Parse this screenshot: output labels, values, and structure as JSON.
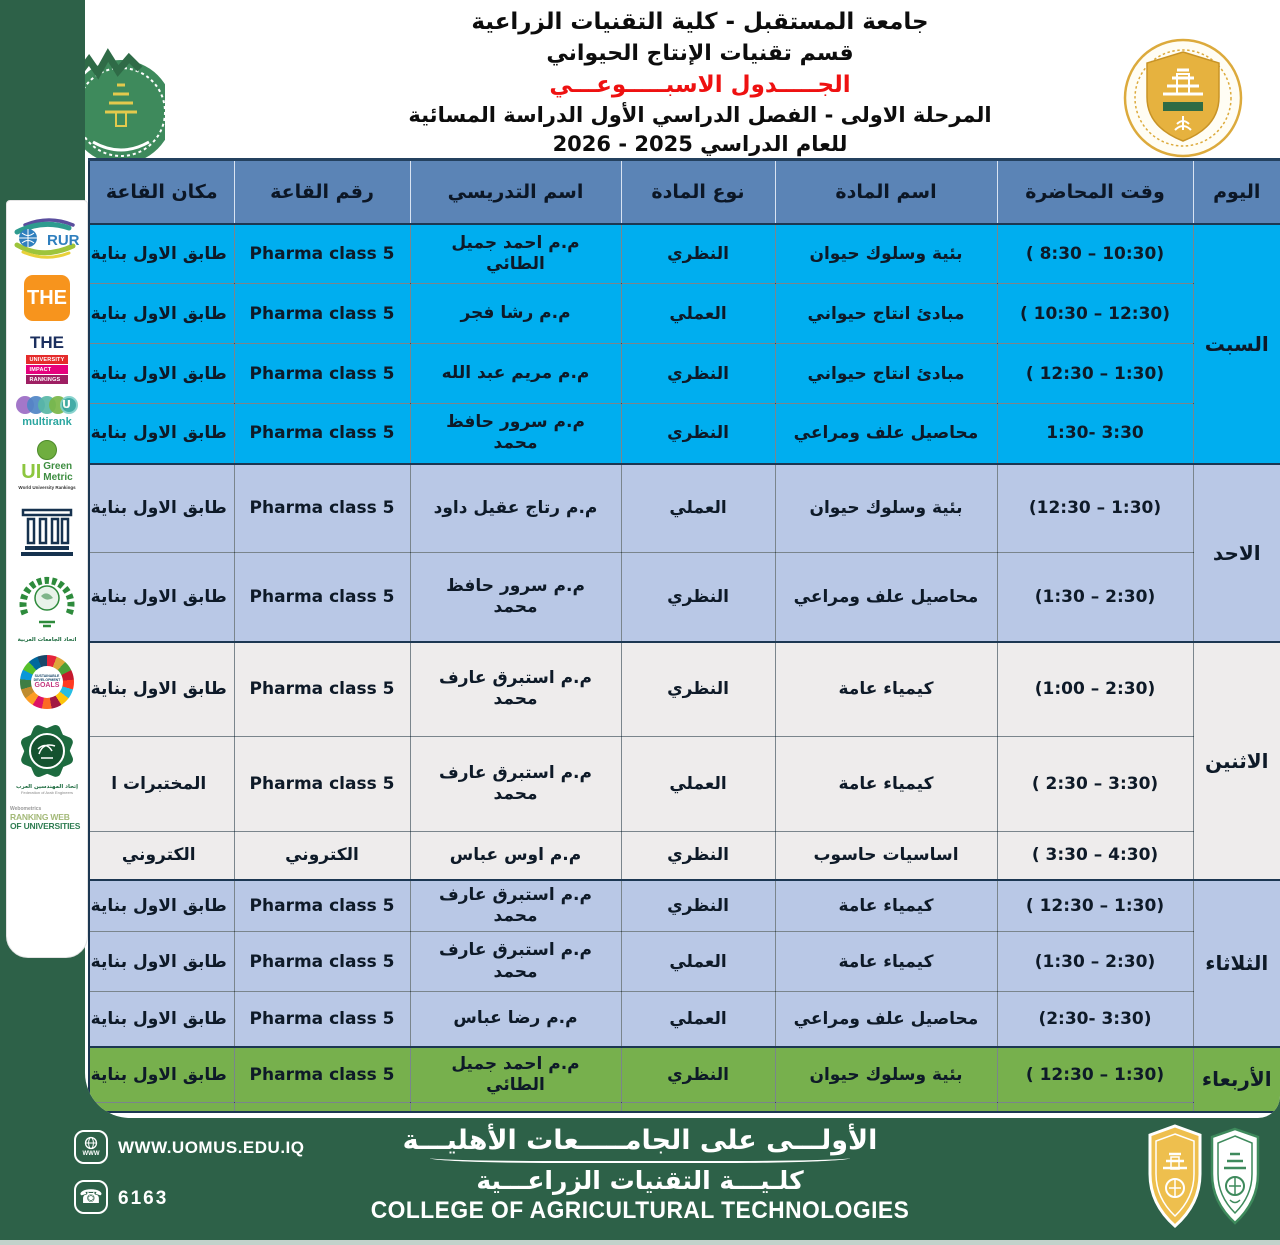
{
  "header": {
    "line1": "جامعة المستقبل - كلية التقنيات الزراعية",
    "line2": "قسم تقنيات الإنتاج الحيواني",
    "line3": "الجـــــدول الاسبـــــوعـــي",
    "line4": "المرحلة الاولى - الفصل الدراسي الأول الدراسة المسائية",
    "line5": "للعام الدراسي 2025 - 2026"
  },
  "table": {
    "headers": [
      "اليوم",
      "وقت المحاضرة",
      "اسم المادة",
      "نوع المادة",
      "اسم التدريسي",
      "رقم القاعة",
      "مكان القاعة"
    ],
    "days": [
      {
        "name": "السبت",
        "rows": [
          {
            "time": "( 8:30 – 10:30)",
            "subject": "بئية وسلوك حيوان",
            "type": "النظري",
            "instructor": "م.م احمد جميل الطائي",
            "room": "Pharma class 5",
            "location": "طابق الاول بناية"
          },
          {
            "time": "( 10:30 – 12:30)",
            "subject": "مبادئ انتاج حيواني",
            "type": "العملي",
            "instructor": "م.م رشا فجر",
            "room": "Pharma class 5",
            "location": "طابق الاول بناية"
          },
          {
            "time": "( 12:30 – 1:30)",
            "subject": "مبادئ انتاج حيواني",
            "type": "النظري",
            "instructor": "م.م مريم عبد الله",
            "room": "Pharma class 5",
            "location": "طابق الاول بناية"
          },
          {
            "time": "1:30- 3:30",
            "subject": "محاصيل علف ومراعي",
            "type": "النظري",
            "instructor": "م.م سرور حافظ محمد",
            "room": "Pharma class 5",
            "location": "طابق الاول بناية"
          }
        ]
      },
      {
        "name": "الاحد",
        "rows": [
          {
            "time": "(12:30 – 1:30)",
            "subject": "بئية وسلوك حيوان",
            "type": "العملي",
            "instructor": "م.م رتاج عقيل داود",
            "room": "Pharma class 5",
            "location": "طابق الاول بناية"
          },
          {
            "time": "(1:30 – 2:30)",
            "subject": "محاصيل علف ومراعي",
            "type": "النظري",
            "instructor": "م.م سرور حافظ محمد",
            "room": "Pharma class 5",
            "location": "طابق الاول بناية"
          }
        ]
      },
      {
        "name": "الاثنين",
        "rows": [
          {
            "time": "(1:00 – 2:30)",
            "subject": "كيمياء عامة",
            "type": "النظري",
            "instructor": "م.م استبرق عارف محمد",
            "room": "Pharma class 5",
            "location": "طابق الاول بناية"
          },
          {
            "time": "( 2:30 – 3:30)",
            "subject": "كيمياء عامة",
            "type": "العملي",
            "instructor": "م.م استبرق عارف محمد",
            "room": "Pharma class 5",
            "location": "المختبرات ا"
          },
          {
            "time": "( 3:30 – 4:30)",
            "subject": "اساسيات حاسوب",
            "type": "النظري",
            "instructor": "م.م اوس عباس",
            "room": "الكتروني",
            "location": "الكتروني"
          }
        ]
      },
      {
        "name": "الثلاثاء",
        "rows": [
          {
            "time": "( 12:30 – 1:30)",
            "subject": "كيمياء عامة",
            "type": "النظري",
            "instructor": "م.م استبرق عارف محمد",
            "room": "Pharma class 5",
            "location": "طابق الاول بناية"
          },
          {
            "time": "(1:30 – 2:30)",
            "subject": "كيمياء عامة",
            "type": "العملي",
            "instructor": "م.م استبرق عارف محمد",
            "room": "Pharma class 5",
            "location": "طابق الاول بناية"
          },
          {
            "time": "(2:30- 3:30)",
            "subject": "محاصيل علف ومراعي",
            "type": "العملي",
            "instructor": "م.م رضا عباس",
            "room": "Pharma class 5",
            "location": "طابق الاول بناية"
          }
        ]
      },
      {
        "name": "الأربعاء",
        "rows": [
          {
            "time": "( 12:30 – 1:30)",
            "subject": "بئية وسلوك حيوان",
            "type": "النظري",
            "instructor": "م.م احمد جميل الطائي",
            "room": "Pharma class 5",
            "location": "طابق الاول بناية"
          }
        ]
      }
    ]
  },
  "sidebar": {
    "logos": [
      {
        "name": "rur-ranking",
        "text": "RUR"
      },
      {
        "name": "times-higher-education",
        "text": "THE"
      },
      {
        "name": "the-impact-rankings",
        "text": "THE",
        "lines": [
          "UNIVERSITY",
          "IMPACT",
          "RANKINGS"
        ]
      },
      {
        "name": "u-multirank",
        "letter": "U",
        "text": "multirank"
      },
      {
        "name": "ui-greenmetric",
        "ui": "UI",
        "green": "Green",
        "metric": "Metric",
        "sub": "World University Rankings"
      },
      {
        "name": "university-building"
      },
      {
        "name": "association-arab-universities",
        "caption": "اتحاد الجامعات العربية"
      },
      {
        "name": "sdg-goals",
        "title": "SUSTAINABLE DEVELOPMENT",
        "text": "GOALS"
      },
      {
        "name": "federation-arab-engineers",
        "caption": "إتحاد المهندسين العرب",
        "caption_en": "Federation of Arab Engineers"
      },
      {
        "name": "webometrics",
        "brand": "Webometrics",
        "line1": "RANKING WEB",
        "line2": "OF UNIVERSITIES"
      }
    ]
  },
  "footer": {
    "website": "WWW.UOMUS.EDU.IQ",
    "phone": "6163",
    "line1": "الأولـــى على الجامـــــعات الأهليـــة",
    "line2": "كلـيـــة التقنيات الزراعـــية",
    "line3": "COLLEGE OF AGRICULTURAL TECHNOLOGIES"
  },
  "colors": {
    "saturday": "#00aeef",
    "sunday": "#b9c8e6",
    "monday": "#eeecec",
    "tuesday": "#b9c8e6",
    "wednesday": "#77b04d",
    "header_row": "#5b84b6",
    "footer_background": "#2d6148",
    "title_red": "#ee1111"
  }
}
